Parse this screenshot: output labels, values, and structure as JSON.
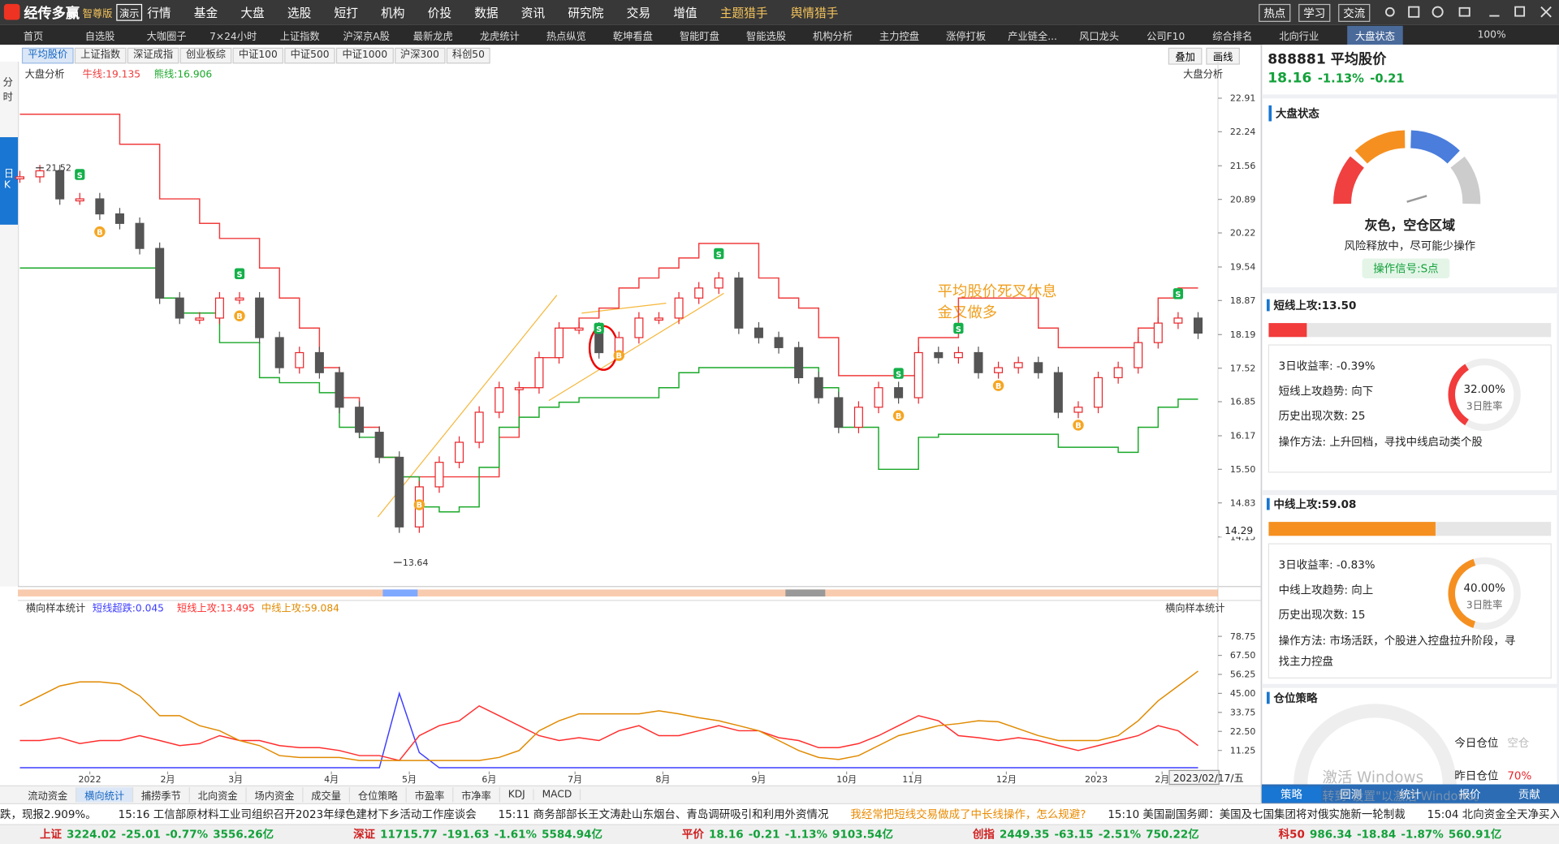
{
  "app": {
    "logo": "经传多赢",
    "edition": "智尊版",
    "demo": "演示"
  },
  "menu": [
    "行情",
    "基金",
    "大盘",
    "选股",
    "短打",
    "机构",
    "价投",
    "数据",
    "资讯",
    "研究院",
    "交易",
    "增值",
    "主题猎手",
    "舆情猎手"
  ],
  "menu_right": [
    "热点",
    "学习",
    "交流"
  ],
  "nav": [
    "首页",
    "自选股",
    "大咖圈子",
    "7×24小时",
    "上证指数",
    "沪深京A股",
    "最新龙虎",
    "龙虎统计",
    "热点纵览",
    "乾坤看盘",
    "智能盯盘",
    "智能选股",
    "机构分析",
    "主力控盘",
    "涨停打板",
    "产业链全...",
    "风口龙头",
    "公司F10",
    "综合排名",
    "北向行业"
  ],
  "nav_active": "大盘状态",
  "zoom": "100%",
  "index_tabs": [
    "平均股价",
    "上证指数",
    "深证成指",
    "创业板综",
    "中证100",
    "中证500",
    "中证1000",
    "沪深300",
    "科创50"
  ],
  "overlay": "叠加",
  "draw_line": "画线",
  "side_tabs": [
    "分时",
    "日K"
  ],
  "signals": [
    "B",
    "S"
  ],
  "chart_data": [
    {
      "type": "candlestick",
      "title": "大盘分析",
      "title_right": "大盘分析",
      "x": [
        0,
        1,
        2,
        3,
        4,
        5,
        6,
        7,
        8,
        9,
        10,
        11,
        12,
        13,
        14,
        15,
        16,
        17,
        18,
        19,
        20,
        21,
        22,
        23,
        24,
        25,
        26,
        27,
        28,
        29,
        30,
        31,
        32,
        33,
        34,
        35,
        36,
        37,
        38,
        39,
        40,
        41,
        42,
        43,
        44,
        45,
        46,
        47,
        48,
        49,
        50,
        51,
        52,
        53,
        54,
        55,
        56,
        57,
        58,
        59
      ],
      "xlim": [
        0,
        59
      ],
      "values": [
        21.34,
        21.46,
        20.9,
        20.9,
        20.6,
        20.41,
        19.91,
        18.92,
        18.52,
        18.52,
        18.92,
        18.92,
        18.13,
        17.53,
        17.83,
        17.43,
        16.74,
        16.24,
        15.74,
        14.35,
        15.15,
        15.64,
        16.04,
        16.64,
        17.13,
        17.13,
        17.73,
        18.32,
        18.32,
        17.83,
        18.13,
        18.52,
        18.52,
        18.92,
        19.12,
        19.32,
        18.32,
        18.13,
        17.93,
        17.33,
        16.93,
        16.34,
        16.74,
        17.13,
        16.93,
        17.83,
        17.73,
        17.83,
        17.43,
        17.53,
        17.63,
        17.43,
        16.64,
        16.74,
        17.33,
        17.53,
        18.03,
        18.42,
        18.52,
        18.22
      ],
      "up_color": "#e8262b",
      "down_color": "#555555",
      "series": [
        {
          "name": "牛线:19.135",
          "color": "#f03c3c",
          "values": [
            22.59,
            22.59,
            22.59,
            22.59,
            22.59,
            21.99,
            21.99,
            20.9,
            20.9,
            20.41,
            20.11,
            20.11,
            19.52,
            18.92,
            18.32,
            17.53,
            16.93,
            16.34,
            15.74,
            15.35,
            15.35,
            15.35,
            15.35,
            15.35,
            16.14,
            17.13,
            17.73,
            18.32,
            18.52,
            18.72,
            19.12,
            19.32,
            19.52,
            19.72,
            20.01,
            20.01,
            20.01,
            19.32,
            18.92,
            18.72,
            18.13,
            17.37,
            17.37,
            17.37,
            17.37,
            18.13,
            18.13,
            18.92,
            18.92,
            18.92,
            18.92,
            18.32,
            17.93,
            17.93,
            17.93,
            17.93,
            18.32,
            18.92,
            19.12,
            19.12
          ]
        },
        {
          "name": "熊线:16.906",
          "color": "#1aa829",
          "values": [
            19.52,
            19.52,
            19.52,
            19.52,
            19.52,
            19.52,
            19.52,
            18.92,
            18.62,
            18.62,
            18.03,
            18.03,
            17.33,
            17.23,
            17.23,
            17.03,
            16.34,
            16.14,
            15.74,
            15.35,
            14.75,
            14.65,
            14.75,
            15.54,
            16.34,
            16.54,
            16.74,
            16.84,
            16.93,
            16.93,
            16.93,
            16.93,
            17.13,
            17.43,
            17.53,
            17.53,
            17.53,
            17.53,
            17.53,
            17.53,
            17.13,
            16.34,
            16.34,
            15.5,
            15.5,
            16.14,
            16.2,
            16.2,
            16.2,
            16.2,
            16.2,
            16.2,
            15.94,
            15.94,
            15.94,
            15.84,
            16.34,
            16.74,
            16.9,
            16.9
          ]
        }
      ],
      "ylim": [
        13.16,
        23.64
      ],
      "yticks": [
        22.91,
        22.24,
        21.56,
        20.89,
        20.22,
        19.54,
        18.87,
        18.19,
        17.52,
        16.85,
        16.17,
        {
          "value": 15.5,
          "label": "15.50"
        },
        14.83,
        14.15
      ],
      "last_price": 14.29,
      "high_label": 21.52,
      "low_label": 13.64,
      "annotations": [
        "平均股价死叉休息",
        "金叉做多"
      ]
    },
    {
      "type": "line",
      "title": "横向样本统计",
      "title_right": "横向样本统计",
      "x": [
        0,
        1,
        2,
        3,
        4,
        5,
        6,
        7,
        8,
        9,
        10,
        11,
        12,
        13,
        14,
        15,
        16,
        17,
        18,
        19,
        20,
        21,
        22,
        23,
        24,
        25,
        26,
        27,
        28,
        29,
        30,
        31,
        32,
        33,
        34,
        35,
        36,
        37,
        38,
        39,
        40,
        41,
        42,
        43,
        44,
        45,
        46,
        47,
        48,
        49,
        50,
        51,
        52,
        53,
        54,
        55,
        56,
        57,
        58,
        59
      ],
      "xlim": [
        0,
        59
      ],
      "xticks": [
        {
          "value": 3.5,
          "label": "2022"
        },
        {
          "value": 7.4,
          "label": "2月"
        },
        {
          "value": 10.8,
          "label": "3月"
        },
        {
          "value": 15.6,
          "label": "4月"
        },
        {
          "value": 19.5,
          "label": "5月"
        },
        {
          "value": 23.5,
          "label": "6月"
        },
        {
          "value": 27.8,
          "label": "7月"
        },
        {
          "value": 32.2,
          "label": "8月"
        },
        {
          "value": 37,
          "label": "9月"
        },
        {
          "value": 41.4,
          "label": "10月"
        },
        {
          "value": 44.7,
          "label": "11月"
        },
        {
          "value": 49.4,
          "label": "12月"
        },
        {
          "value": 53.9,
          "label": "2023"
        },
        {
          "value": 57.2,
          "label": "2月"
        }
      ],
      "date_label": "2023/02/17/五",
      "series": [
        {
          "name": "短线超跌:0.045",
          "color": "#3d3dff",
          "values": [
            1,
            1,
            1,
            1,
            1,
            1,
            1,
            1,
            1,
            1,
            1,
            1,
            1,
            1,
            1,
            1,
            1,
            1,
            1,
            45,
            10,
            1,
            1,
            1,
            1,
            1,
            1,
            1,
            1,
            1,
            1,
            1,
            1,
            1,
            1,
            1,
            1,
            1,
            1,
            1,
            1,
            1,
            1,
            1,
            1,
            1,
            1,
            1,
            1,
            1,
            1,
            1,
            1,
            1,
            1,
            1,
            1,
            1,
            1,
            1
          ]
        },
        {
          "name": "短线上攻:13.495",
          "color": "#ff2d2d",
          "values": [
            17.1,
            17.1,
            18.8,
            15.3,
            17.1,
            17.1,
            20,
            17.1,
            14.1,
            15.3,
            20,
            17.1,
            17.1,
            14.1,
            12.9,
            12.9,
            11.2,
            8.2,
            8.2,
            5.3,
            20,
            25.9,
            28.8,
            37.6,
            31.8,
            25.9,
            20,
            17.1,
            18.8,
            17.1,
            22.9,
            25.9,
            20,
            20,
            22.9,
            25.9,
            22.9,
            22.9,
            18.8,
            17.1,
            12.9,
            12.9,
            15.3,
            20,
            25.9,
            31.8,
            28.8,
            20,
            18.8,
            17.1,
            18.8,
            17.1,
            14.1,
            11.2,
            14.1,
            17.1,
            20,
            25.9,
            22.9,
            14.1
          ]
        },
        {
          "name": "中线上攻:59.084",
          "color": "#e08a00",
          "values": [
            37.6,
            43.5,
            49.4,
            51.8,
            51.8,
            50.6,
            43.5,
            31.8,
            31.8,
            25.9,
            22.9,
            17.1,
            14.1,
            8.2,
            7.1,
            7.1,
            7.1,
            5.3,
            5.3,
            5.3,
            5.3,
            5.3,
            5.3,
            5.3,
            7.1,
            11.2,
            22.9,
            28.8,
            32.9,
            32.9,
            32.9,
            32.9,
            34.7,
            32.9,
            30.6,
            28.8,
            25.9,
            22.9,
            17.1,
            11.2,
            7.1,
            5.9,
            8.2,
            14.1,
            20,
            22.9,
            25.9,
            27.1,
            28.8,
            28.2,
            24.1,
            20,
            17.1,
            17.1,
            17.1,
            20,
            28.8,
            40.6,
            49.4,
            58.2
          ]
        }
      ],
      "ylim": [
        0,
        90
      ],
      "yticks": [
        78.75,
        {
          "value": 67.5,
          "label": "67.50"
        },
        56.25,
        {
          "value": 45,
          "label": "45.00"
        },
        33.75,
        {
          "value": 22.5,
          "label": "22.50"
        },
        11.25
      ]
    }
  ],
  "panel": {
    "code": "888881 平均股价",
    "price": "18.16",
    "change_pct": "-1.13%",
    "change": "-0.21",
    "state_title": "大盘状态",
    "state": "灰色，空仓区域",
    "state_desc": "风险释放中，尽可能少操作",
    "signal": "操作信号:S点",
    "short": {
      "title": {
        "value": 13.5,
        "label": "短线上攻:13.50"
      },
      "rows": [
        "3日收益率:  -0.39%",
        "短线上攻趋势:  向下",
        "历史出现次数:  25",
        "操作方法:  上升回档，寻找中线启动类个股"
      ],
      "win": {
        "value": 32,
        "label": "32.00%"
      },
      "win_label": "3日胜率"
    },
    "mid": {
      "title": {
        "value": 59.08,
        "label": "中线上攻:59.08"
      },
      "rows": [
        "3日收益率:  -0.83%",
        "中线上攻趋势:  向上",
        "历史出现次数:  15",
        "操作方法:  市场活跃，个股进入控盘拉升阶段，寻",
        "找主力控盘"
      ],
      "win": {
        "value": 40,
        "label": "40.00%"
      },
      "win_label": "3日胜率"
    },
    "position_title": "仓位策略",
    "today": "今日仓位",
    "today_value": "空仓",
    "yesterday": "昨日仓位",
    "yesterday_value": "70%",
    "tabs": [
      "策略",
      "回测",
      "统计",
      "报价",
      "贡献"
    ],
    "watermark": [
      "激活 Windows",
      "转到\"设置\"以激活 Windows。"
    ]
  },
  "bottom_tabs": [
    "流动资金",
    "横向统计",
    "捕捞季节",
    "北向资金",
    "场内资金",
    "成交量",
    "仓位策略",
    "市盈率",
    "市净率",
    "KDJ",
    "MACD"
  ],
  "ticker": [
    "跌，现报2.909%。",
    "15:16 工信部原材料工业司组织召开2023年绿色建材下乡活动工作座谈会",
    "15:11 商务部部长王文涛赴山东烟台、青岛调研吸引和利用外资情况",
    "我经常把短线交易做成了中长线操作，怎么规避?",
    "15:10 美国副国务卿：美国及七国集团将对俄实施新一轮制裁",
    "15:04 北向资金全天净买入20"
  ],
  "indices": [
    [
      "上证",
      "3224.02",
      "-25.01",
      "-0.77%",
      "3556.26亿"
    ],
    [
      "深证",
      "11715.77",
      "-191.63",
      "-1.61%",
      "5584.94亿"
    ],
    [
      "平价",
      "18.16",
      "-0.21",
      "-1.13%",
      "9103.54亿"
    ],
    [
      "创指",
      "2449.35",
      "-63.15",
      "-2.51%",
      "750.22亿"
    ],
    [
      "科50",
      "986.34",
      "-18.84",
      "-1.87%",
      "560.91亿"
    ]
  ]
}
